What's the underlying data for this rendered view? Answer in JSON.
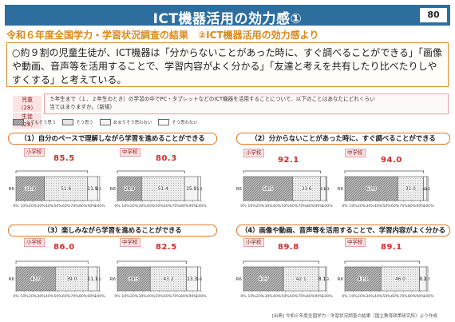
{
  "header": {
    "title": "ICT機器活用の効力感①",
    "page_number": "80",
    "subtitle": "令和６年度全国学力・学習状況調査の結果　②ICT機器活用の効力感より"
  },
  "summary": {
    "lines": [
      "○約９割の児童生徒が、ICT機器は「分からないことがあった時に、すぐ調べることができる」「画像",
      "や動画、音声等を活用することで、学習内容がよく分かる」「友達と考えを共有したり比べたりしや",
      "すくする」と考えている。"
    ]
  },
  "survey": {
    "targets": [
      "児童（28）",
      "生徒（28）"
    ],
    "question_lines": [
      "５年生まで（１、２年生のとき）の学習の中でPC・タブレットなどのICT機器を活用することについて、以下のことはあなたにどれくらい",
      "当てはまりますか。（新規）"
    ]
  },
  "legend": [
    {
      "label": "とてもそう思う",
      "color": "#a9a9a9"
    },
    {
      "label": "そう思う",
      "color": "#e4e4e4"
    },
    {
      "label": "あまりそう思わない",
      "color": "#f4f4f4"
    },
    {
      "label": "そう思わない",
      "color": "#ffffff"
    }
  ],
  "panels": [
    {
      "heading": "（1）自分のペースで理解しながら学習を進めることができる",
      "elementary": {
        "label": "小学校",
        "total": "85.5"
      },
      "junior": {
        "label": "中学校",
        "total": "80.3"
      }
    },
    {
      "heading": "（2）分からないことがあった時に、すぐ調べることができる",
      "elementary": {
        "label": "小学校",
        "total": "92.1"
      },
      "junior": {
        "label": "中学校",
        "total": "94.0"
      }
    },
    {
      "heading": "（3）楽しみながら学習を進めることができる",
      "elementary": {
        "label": "小学校",
        "total": "86.0"
      },
      "junior": {
        "label": "中学校",
        "total": "82.5"
      }
    },
    {
      "heading": "（4）画像や動画、音声等を活用することで、学習内容がよく分かる",
      "elementary": {
        "label": "小学校",
        "total": "89.8"
      },
      "junior": {
        "label": "中学校",
        "total": "89.1"
      }
    }
  ],
  "footer": "[出典] 令和６年度全国学力・学習状況調査の結果（国立教育政策研究所）より作成",
  "chart_data": {
    "type": "bar",
    "stacked": true,
    "orientation": "horizontal",
    "row_label": "R6",
    "categories": [
      "とてもそう思う",
      "そう思う",
      "あまりそう思わない",
      "そう思わない"
    ],
    "x_ticks": [
      "0%",
      "10%",
      "20%",
      "30%",
      "40%",
      "50%",
      "60%",
      "70%",
      "80%",
      "90%",
      "100%"
    ],
    "xlim": [
      0,
      100
    ],
    "charts": [
      {
        "panel": 0,
        "school": "小学校",
        "values": [
          33.9,
          51.6,
          11.9,
          2.5
        ]
      },
      {
        "panel": 0,
        "school": "中学校",
        "values": [
          28.9,
          51.4,
          15.9,
          3.3
        ]
      },
      {
        "panel": 1,
        "school": "小学校",
        "values": [
          58.5,
          33.6,
          6.2,
          1.3
        ]
      },
      {
        "panel": 1,
        "school": "中学校",
        "values": [
          63.0,
          31.0,
          4.0,
          1.2
        ]
      },
      {
        "panel": 2,
        "school": "小学校",
        "values": [
          47.0,
          39.0,
          11.1,
          2.6
        ]
      },
      {
        "panel": 2,
        "school": "中学校",
        "values": [
          39.3,
          43.2,
          13.3,
          3.6
        ]
      },
      {
        "panel": 3,
        "school": "小学校",
        "values": [
          47.7,
          42.1,
          8.1,
          1.3
        ]
      },
      {
        "panel": 3,
        "school": "中学校",
        "values": [
          43.1,
          46.0,
          8.2,
          1.7
        ]
      }
    ]
  }
}
